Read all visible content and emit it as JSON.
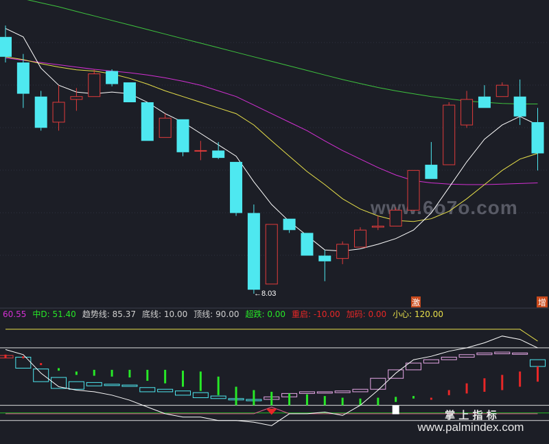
{
  "colors": {
    "background": "#1c1e26",
    "gridline": "#2e3240",
    "candle_up": "#e23b3b",
    "candle_down": "#4ee8f0",
    "ma_short": "#ffffff",
    "ma_mid": "#e8e04a",
    "ma_long_magenta": "#d430d4",
    "ma_long_green": "#3ec43e",
    "bar_green": "#27e827",
    "bar_red": "#e82727",
    "box_cyan": "#4ee8f0",
    "box_pink": "#e8a8e8",
    "line_yellow": "#e8e04a",
    "line_white": "#ffffff",
    "watermark": "#8a8d99"
  },
  "watermark": {
    "main": "www.6o7o.com",
    "corner_cn": "掌 上 指 标",
    "corner_url": "www.palmindex.com"
  },
  "markers": {
    "low_label": "←8.03",
    "tag_1": "激",
    "tag_2": "增"
  },
  "indicator_header": [
    {
      "text": "60.55",
      "color": "#d430d4"
    },
    {
      "text": "中D: 51.40",
      "color": "#27e827"
    },
    {
      "text": "趋势线: 85.37",
      "color": "#d0d0d0"
    },
    {
      "text": "底线: 10.00",
      "color": "#d0d0d0"
    },
    {
      "text": "顶线: 90.00",
      "color": "#d0d0d0"
    },
    {
      "text": "超跌: 0.00",
      "color": "#27e827"
    },
    {
      "text": "重启: -10.00",
      "color": "#e82727"
    },
    {
      "text": "加码: 0.00",
      "color": "#e82727"
    },
    {
      "text": "小心: 120.00",
      "color": "#e8e04a"
    }
  ],
  "chart_data": [
    {
      "type": "candlestick",
      "y_range": [
        7.8,
        13.2
      ],
      "candles": [
        {
          "o": 12.55,
          "h": 12.75,
          "l": 12.1,
          "c": 12.2
        },
        {
          "o": 12.1,
          "h": 12.25,
          "l": 11.3,
          "c": 11.55
        },
        {
          "o": 11.5,
          "h": 11.6,
          "l": 10.9,
          "c": 10.95
        },
        {
          "o": 11.05,
          "h": 11.7,
          "l": 10.9,
          "c": 11.4
        },
        {
          "o": 11.45,
          "h": 11.65,
          "l": 11.25,
          "c": 11.5
        },
        {
          "o": 11.5,
          "h": 11.98,
          "l": 11.5,
          "c": 11.9
        },
        {
          "o": 11.95,
          "h": 11.98,
          "l": 11.68,
          "c": 11.72
        },
        {
          "o": 11.75,
          "h": 11.75,
          "l": 11.4,
          "c": 11.4
        },
        {
          "o": 11.4,
          "h": 11.4,
          "l": 10.72,
          "c": 10.72
        },
        {
          "o": 10.78,
          "h": 11.2,
          "l": 10.78,
          "c": 11.12
        },
        {
          "o": 11.1,
          "h": 11.1,
          "l": 10.45,
          "c": 10.52
        },
        {
          "o": 10.55,
          "h": 10.72,
          "l": 10.38,
          "c": 10.55
        },
        {
          "o": 10.55,
          "h": 10.7,
          "l": 10.4,
          "c": 10.42
        },
        {
          "o": 10.35,
          "h": 10.35,
          "l": 9.4,
          "c": 9.45
        },
        {
          "o": 9.45,
          "h": 9.6,
          "l": 8.03,
          "c": 8.1
        },
        {
          "o": 8.2,
          "h": 9.25,
          "l": 8.2,
          "c": 9.25
        },
        {
          "o": 9.35,
          "h": 9.35,
          "l": 9.1,
          "c": 9.15
        },
        {
          "o": 9.1,
          "h": 9.1,
          "l": 8.7,
          "c": 8.7
        },
        {
          "o": 8.7,
          "h": 8.8,
          "l": 8.25,
          "c": 8.6
        },
        {
          "o": 8.65,
          "h": 8.95,
          "l": 8.55,
          "c": 8.9
        },
        {
          "o": 8.85,
          "h": 9.2,
          "l": 8.85,
          "c": 9.15
        },
        {
          "o": 9.2,
          "h": 9.4,
          "l": 9.15,
          "c": 9.22
        },
        {
          "o": 9.22,
          "h": 9.55,
          "l": 9.22,
          "c": 9.5
        },
        {
          "o": 9.5,
          "h": 10.2,
          "l": 9.5,
          "c": 10.2
        },
        {
          "o": 10.3,
          "h": 10.7,
          "l": 10.05,
          "c": 10.05
        },
        {
          "o": 10.3,
          "h": 11.4,
          "l": 10.3,
          "c": 11.35
        },
        {
          "o": 11.0,
          "h": 11.6,
          "l": 10.95,
          "c": 11.45
        },
        {
          "o": 11.5,
          "h": 11.7,
          "l": 11.3,
          "c": 11.3
        },
        {
          "o": 11.5,
          "h": 11.75,
          "l": 11.5,
          "c": 11.7
        },
        {
          "o": 11.5,
          "h": 11.8,
          "l": 11.0,
          "c": 11.15
        },
        {
          "o": 11.05,
          "h": 11.3,
          "l": 10.2,
          "c": 10.5
        }
      ],
      "ma_short": [
        12.7,
        12.55,
        12.0,
        11.7,
        11.58,
        11.55,
        11.58,
        11.55,
        11.4,
        11.2,
        11.05,
        10.85,
        10.65,
        10.45,
        10.0,
        9.6,
        9.3,
        9.05,
        8.8,
        8.78,
        8.82,
        8.9,
        9.0,
        9.15,
        9.45,
        9.9,
        10.35,
        10.75,
        11.0,
        11.15,
        11.0
      ],
      "ma_mid": [
        12.2,
        12.15,
        12.08,
        12.02,
        11.97,
        11.95,
        11.9,
        11.82,
        11.72,
        11.6,
        11.5,
        11.4,
        11.3,
        11.2,
        11.0,
        10.72,
        10.45,
        10.18,
        9.95,
        9.7,
        9.52,
        9.4,
        9.32,
        9.3,
        9.35,
        9.48,
        9.7,
        9.95,
        10.2,
        10.4,
        10.5
      ],
      "ma_magenta": [
        12.18,
        12.14,
        12.1,
        12.06,
        12.02,
        11.98,
        11.95,
        11.92,
        11.88,
        11.83,
        11.77,
        11.7,
        11.6,
        11.5,
        11.35,
        11.2,
        11.05,
        10.9,
        10.72,
        10.55,
        10.4,
        10.25,
        10.12,
        10.02,
        9.98,
        9.96,
        9.95,
        9.95,
        9.96,
        9.97,
        9.98
      ],
      "ma_green": [
        13.3,
        13.22,
        13.15,
        13.08,
        13.0,
        12.92,
        12.84,
        12.76,
        12.68,
        12.6,
        12.52,
        12.44,
        12.36,
        12.28,
        12.2,
        12.12,
        12.04,
        11.96,
        11.88,
        11.8,
        11.73,
        11.66,
        11.6,
        11.55,
        11.5,
        11.46,
        11.42,
        11.4,
        11.38,
        11.37,
        11.37
      ]
    },
    {
      "type": "indicator",
      "y_range": [
        -10,
        120
      ],
      "boxes": [
        {
          "a": 81,
          "b": 78,
          "color": "red"
        },
        {
          "a": 79,
          "b": 66,
          "color": "cyan"
        },
        {
          "a": 65,
          "b": 50,
          "color": "cyan"
        },
        {
          "a": 55,
          "b": 42,
          "color": "cyan"
        },
        {
          "a": 50,
          "b": 41,
          "color": "cyan"
        },
        {
          "a": 49,
          "b": 45,
          "color": "cyan"
        },
        {
          "a": 47,
          "b": 46,
          "color": "cyan"
        },
        {
          "a": 46,
          "b": 46,
          "color": "cyan"
        },
        {
          "a": 43,
          "b": 38,
          "color": "cyan"
        },
        {
          "a": 41,
          "b": 38,
          "color": "cyan"
        },
        {
          "a": 39,
          "b": 34,
          "color": "cyan"
        },
        {
          "a": 37,
          "b": 31,
          "color": "cyan"
        },
        {
          "a": 33,
          "b": 30,
          "color": "cyan"
        },
        {
          "a": 30,
          "b": 29,
          "color": "cyan"
        },
        {
          "a": 29,
          "b": 29,
          "color": "cyan"
        },
        {
          "a": 29,
          "b": 32,
          "color": "pink"
        },
        {
          "a": 32,
          "b": 36,
          "color": "pink"
        },
        {
          "a": 36,
          "b": 38,
          "color": "pink"
        },
        {
          "a": 37,
          "b": 38,
          "color": "pink"
        },
        {
          "a": 37,
          "b": 39,
          "color": "pink"
        },
        {
          "a": 38,
          "b": 41,
          "color": "pink"
        },
        {
          "a": 41,
          "b": 54,
          "color": "pink"
        },
        {
          "a": 54,
          "b": 64,
          "color": "pink"
        },
        {
          "a": 64,
          "b": 72,
          "color": "pink"
        },
        {
          "a": 72,
          "b": 76,
          "color": "pink"
        },
        {
          "a": 76,
          "b": 79,
          "color": "pink"
        },
        {
          "a": 79,
          "b": 82,
          "color": "pink"
        },
        {
          "a": 82,
          "b": 84,
          "color": "pink"
        },
        {
          "a": 83,
          "b": 85,
          "color": "pink"
        },
        {
          "a": 84,
          "b": 84,
          "color": "pink"
        },
        {
          "a": 76,
          "b": 68,
          "color": "cyan"
        }
      ],
      "bars": [
        {
          "top": 82,
          "bottom": 78,
          "color": "red"
        },
        {
          "top": 80,
          "bottom": 80,
          "color": "red"
        },
        {
          "top": 72,
          "bottom": 71,
          "color": "red"
        },
        {
          "top": 66,
          "bottom": 63,
          "color": "green"
        },
        {
          "top": 62,
          "bottom": 58,
          "color": "green"
        },
        {
          "top": 64,
          "bottom": 57,
          "color": "green"
        },
        {
          "top": 64,
          "bottom": 56,
          "color": "green"
        },
        {
          "top": 64,
          "bottom": 55,
          "color": "green"
        },
        {
          "top": 64,
          "bottom": 51,
          "color": "green"
        },
        {
          "top": 64,
          "bottom": 48,
          "color": "green"
        },
        {
          "top": 63,
          "bottom": 44,
          "color": "green"
        },
        {
          "top": 62,
          "bottom": 39,
          "color": "green"
        },
        {
          "top": 56,
          "bottom": 34,
          "color": "green"
        },
        {
          "top": 44,
          "bottom": 22,
          "color": "green"
        },
        {
          "top": 40,
          "bottom": 22,
          "color": "green"
        },
        {
          "top": 38,
          "bottom": 22,
          "color": "green"
        },
        {
          "top": 36,
          "bottom": 22,
          "color": "green"
        },
        {
          "top": 35,
          "bottom": 22,
          "color": "green"
        },
        {
          "top": 33,
          "bottom": 22,
          "color": "green"
        },
        {
          "top": 31,
          "bottom": 22,
          "color": "green"
        },
        {
          "top": 30,
          "bottom": 22,
          "color": "green"
        },
        {
          "top": 31,
          "bottom": 22,
          "color": "green"
        },
        {
          "top": 32,
          "bottom": 26,
          "color": "green"
        },
        {
          "top": 33,
          "bottom": 30,
          "color": "green"
        },
        {
          "top": 31,
          "bottom": 30,
          "color": "red"
        },
        {
          "top": 40,
          "bottom": 34,
          "color": "red"
        },
        {
          "top": 48,
          "bottom": 36,
          "color": "red"
        },
        {
          "top": 54,
          "bottom": 38,
          "color": "red"
        },
        {
          "top": 58,
          "bottom": 40,
          "color": "red"
        },
        {
          "top": 62,
          "bottom": 44,
          "color": "red"
        },
        {
          "top": 68,
          "bottom": 50,
          "color": "red"
        }
      ],
      "white_line": [
        88,
        82,
        60,
        44,
        40,
        38,
        34,
        28,
        20,
        12,
        8,
        8,
        4,
        4,
        2,
        -2,
        12,
        12,
        14,
        10,
        22,
        40,
        60,
        76,
        80,
        86,
        90,
        96,
        104,
        100,
        90
      ],
      "yellow_line": [
        112,
        112,
        112,
        112,
        112,
        112,
        112,
        112,
        112,
        112,
        112,
        112,
        112,
        112,
        112,
        112,
        112,
        112,
        112,
        112,
        112,
        112,
        112,
        112,
        112,
        112,
        112,
        112,
        112,
        112,
        98
      ],
      "pink_line": [
        12,
        12,
        12,
        12,
        12,
        12,
        12,
        12,
        12,
        12,
        12,
        12,
        12,
        12,
        12,
        20,
        12,
        12,
        12,
        12,
        12,
        12,
        12,
        12,
        12,
        12,
        12,
        12,
        12,
        12,
        12
      ],
      "reference_levels": [
        90,
        22,
        13,
        4
      ]
    }
  ]
}
